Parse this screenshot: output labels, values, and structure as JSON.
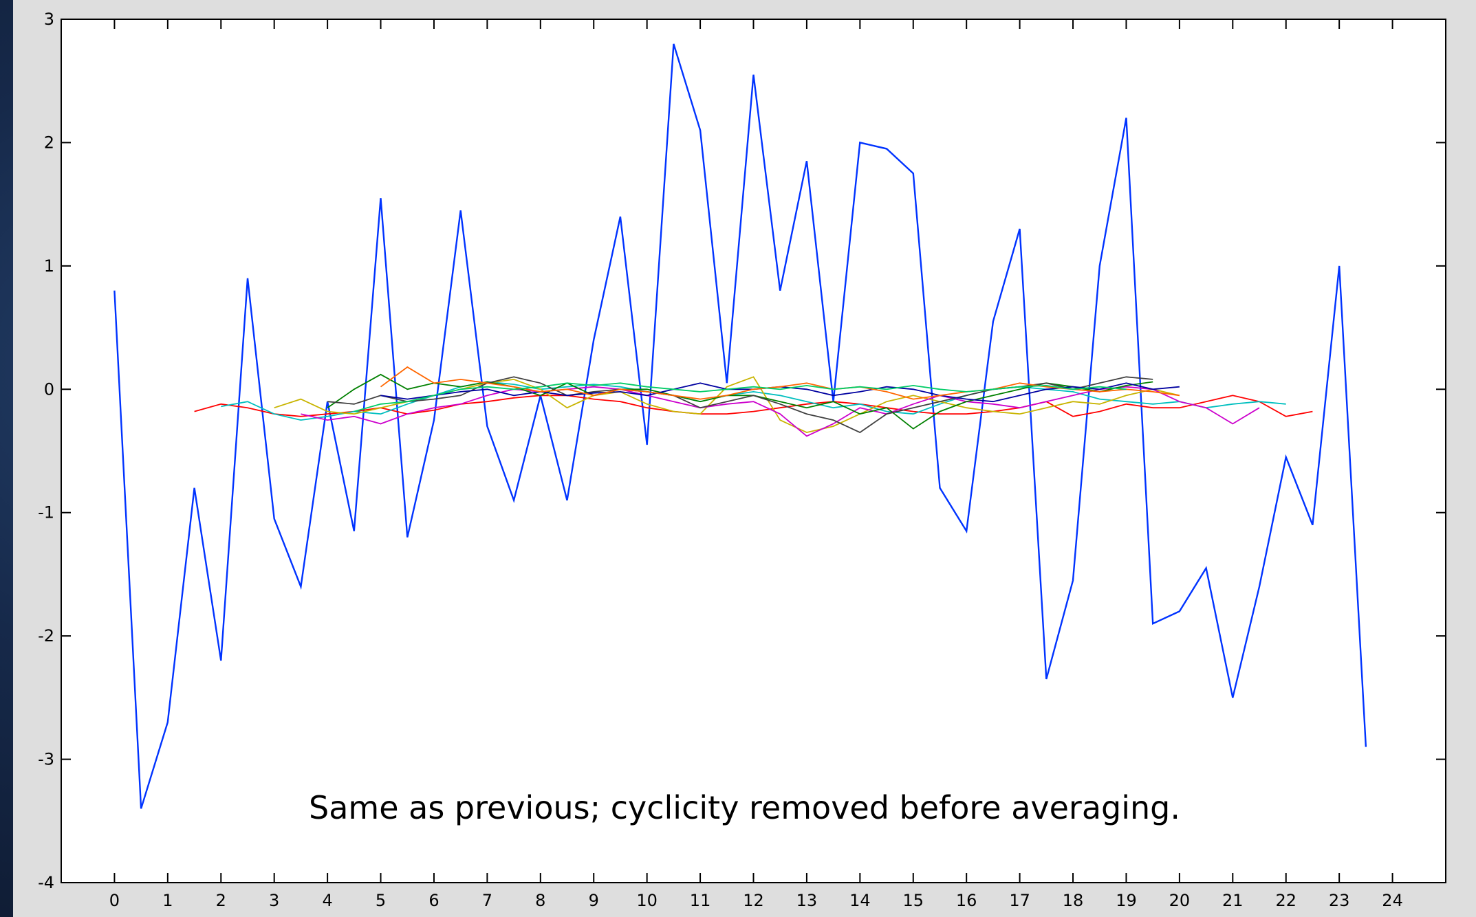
{
  "caption": "Same as previous; cyclicity removed before averaging.",
  "chart_data": {
    "type": "line",
    "title": "",
    "xlabel": "",
    "ylabel": "",
    "xlim": [
      -1,
      25
    ],
    "ylim": [
      -4,
      3
    ],
    "xticks": [
      0,
      1,
      2,
      3,
      4,
      5,
      6,
      7,
      8,
      9,
      10,
      11,
      12,
      13,
      14,
      15,
      16,
      17,
      18,
      19,
      20,
      21,
      22,
      23,
      24
    ],
    "yticks": [
      -4,
      -3,
      -2,
      -1,
      0,
      1,
      2,
      3
    ],
    "grid": false,
    "legend": "none",
    "series": [
      {
        "color": "#0033ff",
        "x": [
          0,
          0.5,
          1,
          1.5,
          2,
          2.5,
          3,
          3.5,
          4,
          4.5,
          5,
          5.5,
          6,
          6.5,
          7,
          7.5,
          8,
          8.5,
          9,
          9.5,
          10,
          10.5,
          11,
          11.5,
          12,
          12.5,
          13,
          13.5,
          14,
          14.5,
          15,
          15.5,
          16,
          16.5,
          17,
          17.5,
          18,
          18.5,
          19,
          19.5,
          20,
          20.5,
          21,
          21.5,
          22,
          22.5,
          23,
          23.5
        ],
        "values": [
          0.8,
          -3.4,
          -2.7,
          -0.8,
          -2.2,
          0.9,
          -1.05,
          -1.6,
          -0.1,
          -1.15,
          1.55,
          -1.2,
          -0.25,
          1.45,
          -0.3,
          -0.9,
          -0.05,
          -0.9,
          0.4,
          1.4,
          -0.45,
          2.8,
          2.1,
          0.05,
          2.55,
          0.8,
          1.85,
          -0.1,
          2.0,
          1.95,
          1.75,
          -0.8,
          -1.15,
          0.55,
          1.3,
          -2.35,
          -1.55,
          1.0,
          2.2,
          -1.9,
          -1.8,
          -1.45,
          -2.5,
          -1.6,
          -0.55,
          -1.1,
          1.0,
          -2.9
        ]
      },
      {
        "color": "#ff0000",
        "x": [
          1.5,
          2,
          2.5,
          3,
          3.5,
          4,
          4.5,
          5,
          5.5,
          6,
          6.5,
          7,
          7.5,
          8,
          8.5,
          9,
          9.5,
          10,
          10.5,
          11,
          11.5,
          12,
          12.5,
          13,
          13.5,
          14,
          14.5,
          15,
          15.5,
          16,
          16.5,
          17,
          17.5,
          18,
          18.5,
          19,
          19.5,
          20,
          20.5,
          21,
          21.5,
          22,
          22.5
        ],
        "values": [
          -0.18,
          -0.12,
          -0.15,
          -0.2,
          -0.22,
          -0.2,
          -0.18,
          -0.15,
          -0.2,
          -0.17,
          -0.12,
          -0.1,
          -0.07,
          -0.05,
          -0.05,
          -0.08,
          -0.1,
          -0.15,
          -0.18,
          -0.2,
          -0.2,
          -0.18,
          -0.15,
          -0.12,
          -0.1,
          -0.12,
          -0.15,
          -0.18,
          -0.2,
          -0.2,
          -0.18,
          -0.15,
          -0.1,
          -0.22,
          -0.18,
          -0.12,
          -0.15,
          -0.15,
          -0.1,
          -0.05,
          -0.1,
          -0.22,
          -0.18
        ]
      },
      {
        "color": "#00bfbf",
        "x": [
          2,
          2.5,
          3,
          3.5,
          4,
          4.5,
          5,
          5.5,
          6,
          6.5,
          7,
          7.5,
          8,
          8.5,
          9,
          9.5,
          10,
          10.5,
          11,
          11.5,
          12,
          12.5,
          13,
          13.5,
          14,
          14.5,
          15,
          15.5,
          16,
          16.5,
          17,
          17.5,
          18,
          18.5,
          19,
          19.5,
          20,
          20.5,
          21,
          21.5,
          22
        ],
        "values": [
          -0.14,
          -0.1,
          -0.2,
          -0.25,
          -0.22,
          -0.18,
          -0.2,
          -0.12,
          -0.05,
          0.02,
          0.06,
          0.04,
          0.0,
          0.02,
          0.04,
          0.02,
          -0.02,
          -0.05,
          -0.1,
          -0.05,
          -0.02,
          -0.05,
          -0.1,
          -0.15,
          -0.12,
          -0.18,
          -0.2,
          -0.12,
          -0.05,
          0.0,
          0.02,
          0.0,
          -0.02,
          -0.08,
          -0.1,
          -0.12,
          -0.1,
          -0.15,
          -0.12,
          -0.1,
          -0.12
        ]
      },
      {
        "color": "#c8b400",
        "x": [
          3,
          3.5,
          4,
          4.5,
          5,
          5.5,
          6,
          6.5,
          7,
          7.5,
          8,
          8.5,
          9,
          9.5,
          10,
          10.5,
          11,
          11.5,
          12,
          12.5,
          13,
          13.5,
          14,
          14.5,
          15,
          15.5,
          16,
          16.5,
          17,
          17.5,
          18,
          18.5,
          19,
          19.5,
          20
        ],
        "values": [
          -0.15,
          -0.08,
          -0.18,
          -0.2,
          -0.15,
          -0.1,
          -0.05,
          0.0,
          0.05,
          0.08,
          0.0,
          -0.15,
          -0.05,
          -0.02,
          -0.12,
          -0.18,
          -0.2,
          0.02,
          0.1,
          -0.25,
          -0.35,
          -0.3,
          -0.2,
          -0.1,
          -0.05,
          -0.1,
          -0.15,
          -0.18,
          -0.2,
          -0.15,
          -0.1,
          -0.12,
          -0.05,
          0.0,
          -0.05
        ]
      },
      {
        "color": "#cc00cc",
        "x": [
          3.5,
          4,
          4.5,
          5,
          5.5,
          6,
          6.5,
          7,
          7.5,
          8,
          8.5,
          9,
          9.5,
          10,
          10.5,
          11,
          11.5,
          12,
          12.5,
          13,
          13.5,
          14,
          14.5,
          15,
          15.5,
          16,
          16.5,
          17,
          17.5,
          18,
          18.5,
          19,
          19.5,
          20,
          20.5,
          21,
          21.5
        ],
        "values": [
          -0.2,
          -0.25,
          -0.22,
          -0.28,
          -0.2,
          -0.15,
          -0.12,
          -0.05,
          0.0,
          -0.02,
          0.0,
          0.02,
          0.0,
          -0.05,
          -0.1,
          -0.15,
          -0.12,
          -0.1,
          -0.2,
          -0.38,
          -0.28,
          -0.15,
          -0.2,
          -0.12,
          -0.05,
          -0.1,
          -0.12,
          -0.15,
          -0.1,
          -0.05,
          0.0,
          0.02,
          0.0,
          -0.1,
          -0.15,
          -0.28,
          -0.15
        ]
      },
      {
        "color": "#008000",
        "x": [
          4,
          4.5,
          5,
          5.5,
          6,
          6.5,
          7,
          7.5,
          8,
          8.5,
          9,
          9.5,
          10,
          10.5,
          11,
          11.5,
          12,
          12.5,
          13,
          13.5,
          14,
          14.5,
          15,
          15.5,
          16,
          16.5,
          17,
          17.5,
          18,
          18.5,
          19,
          19.5
        ],
        "values": [
          -0.15,
          0.0,
          0.12,
          0.0,
          0.05,
          0.02,
          0.06,
          0.02,
          -0.05,
          0.05,
          -0.05,
          0.0,
          0.0,
          -0.05,
          -0.1,
          -0.05,
          -0.05,
          -0.1,
          -0.15,
          -0.1,
          -0.2,
          -0.15,
          -0.32,
          -0.18,
          -0.1,
          -0.05,
          0.0,
          0.05,
          0.02,
          -0.02,
          0.03,
          0.06
        ]
      },
      {
        "color": "#404040",
        "x": [
          4,
          4.5,
          5,
          5.5,
          6,
          6.5,
          7,
          7.5,
          8,
          8.5,
          9,
          9.5,
          10,
          10.5,
          11,
          11.5,
          12,
          12.5,
          13,
          13.5,
          14,
          14.5,
          15,
          15.5,
          16,
          16.5,
          17,
          17.5,
          18,
          18.5,
          19,
          19.5
        ],
        "values": [
          -0.1,
          -0.12,
          -0.05,
          -0.1,
          -0.08,
          -0.05,
          0.05,
          0.1,
          0.05,
          -0.05,
          -0.02,
          0.0,
          -0.02,
          -0.05,
          -0.15,
          -0.1,
          -0.05,
          -0.12,
          -0.2,
          -0.25,
          -0.35,
          -0.2,
          -0.15,
          -0.1,
          -0.05,
          0.0,
          0.02,
          0.05,
          0.0,
          0.05,
          0.1,
          0.08
        ]
      },
      {
        "color": "#0000a0",
        "x": [
          5,
          5.5,
          6,
          6.5,
          7,
          7.5,
          8,
          8.5,
          9,
          9.5,
          10,
          10.5,
          11,
          11.5,
          12,
          12.5,
          13,
          13.5,
          14,
          14.5,
          15,
          15.5,
          16,
          16.5,
          17,
          17.5,
          18,
          18.5,
          19,
          19.5,
          20
        ],
        "values": [
          -0.05,
          -0.08,
          -0.05,
          -0.02,
          0.0,
          -0.05,
          -0.02,
          -0.05,
          -0.03,
          -0.02,
          -0.05,
          0.0,
          0.05,
          0.0,
          0.0,
          0.02,
          0.0,
          -0.05,
          -0.02,
          0.02,
          0.0,
          -0.05,
          -0.08,
          -0.1,
          -0.05,
          0.0,
          0.02,
          0.0,
          0.05,
          0.0,
          0.02
        ]
      },
      {
        "color": "#ff6600",
        "x": [
          5,
          5.5,
          6,
          6.5,
          7,
          7.5,
          8,
          8.5,
          9,
          9.5,
          10,
          10.5,
          11,
          11.5,
          12,
          12.5,
          13,
          13.5,
          14,
          14.5,
          15,
          15.5,
          16,
          16.5,
          17,
          17.5,
          18,
          18.5,
          19,
          19.5,
          20
        ],
        "values": [
          0.02,
          0.18,
          0.05,
          0.08,
          0.05,
          0.02,
          -0.02,
          0.0,
          -0.05,
          0.0,
          -0.02,
          -0.05,
          -0.08,
          -0.05,
          0.0,
          0.02,
          0.05,
          0.0,
          0.02,
          -0.02,
          -0.08,
          -0.05,
          -0.02,
          0.0,
          0.05,
          0.02,
          0.0,
          -0.02,
          0.0,
          -0.02,
          -0.05
        ]
      },
      {
        "color": "#00cc66",
        "x": [
          4.5,
          5,
          5.5,
          6,
          6.5,
          7,
          7.5,
          8,
          8.5,
          9,
          9.5,
          10,
          10.5,
          11,
          11.5,
          12,
          12.5,
          13,
          13.5,
          14,
          14.5,
          15,
          15.5,
          16,
          16.5,
          17,
          17.5,
          18,
          18.5,
          19
        ],
        "values": [
          -0.18,
          -0.12,
          -0.1,
          -0.05,
          0.0,
          0.02,
          0.0,
          0.02,
          0.05,
          0.03,
          0.05,
          0.02,
          0.0,
          -0.02,
          0.0,
          0.02,
          0.0,
          0.03,
          0.0,
          0.02,
          0.0,
          0.03,
          0.0,
          -0.02,
          0.0,
          0.02,
          0.03,
          0.0,
          0.02,
          0.0
        ]
      }
    ]
  }
}
